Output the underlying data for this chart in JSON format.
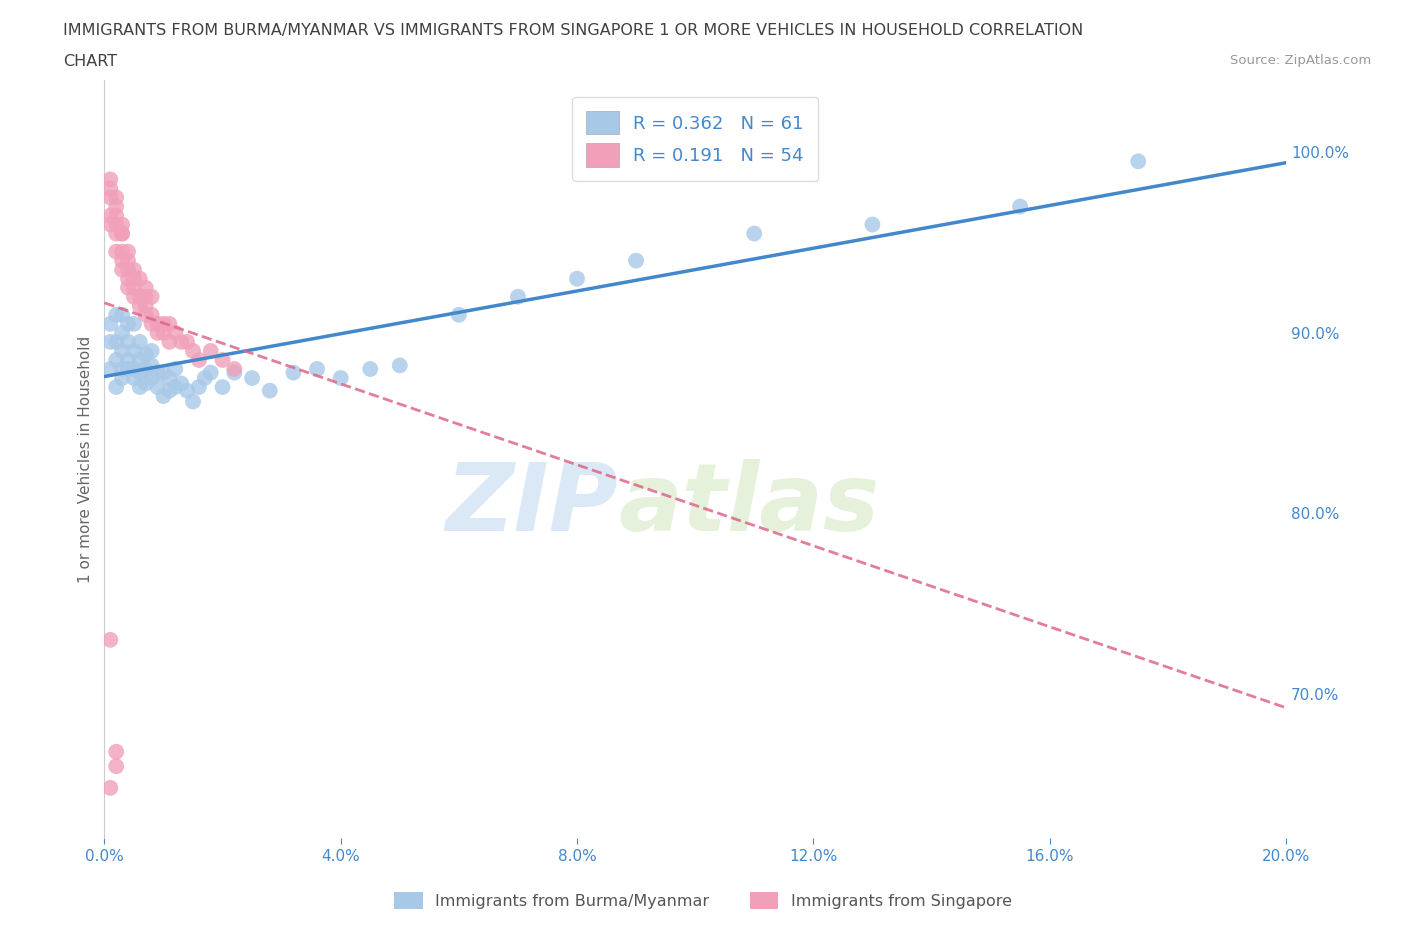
{
  "title_line1": "IMMIGRANTS FROM BURMA/MYANMAR VS IMMIGRANTS FROM SINGAPORE 1 OR MORE VEHICLES IN HOUSEHOLD CORRELATION",
  "title_line2": "CHART",
  "source": "Source: ZipAtlas.com",
  "ylabel": "1 or more Vehicles in Household",
  "xlim": [
    0.0,
    0.2
  ],
  "ylim": [
    0.62,
    1.04
  ],
  "legend_labels": [
    "Immigrants from Burma/Myanmar",
    "Immigrants from Singapore"
  ],
  "scatter_burma": {
    "x": [
      0.001,
      0.001,
      0.001,
      0.002,
      0.002,
      0.002,
      0.002,
      0.003,
      0.003,
      0.003,
      0.003,
      0.003,
      0.004,
      0.004,
      0.004,
      0.004,
      0.005,
      0.005,
      0.005,
      0.005,
      0.006,
      0.006,
      0.006,
      0.006,
      0.007,
      0.007,
      0.007,
      0.008,
      0.008,
      0.008,
      0.009,
      0.009,
      0.01,
      0.01,
      0.011,
      0.011,
      0.012,
      0.012,
      0.013,
      0.014,
      0.015,
      0.016,
      0.017,
      0.018,
      0.02,
      0.022,
      0.025,
      0.028,
      0.032,
      0.036,
      0.04,
      0.045,
      0.05,
      0.06,
      0.07,
      0.08,
      0.09,
      0.11,
      0.13,
      0.155,
      0.175
    ],
    "y": [
      0.88,
      0.895,
      0.905,
      0.87,
      0.885,
      0.895,
      0.91,
      0.875,
      0.88,
      0.89,
      0.9,
      0.91,
      0.88,
      0.885,
      0.895,
      0.905,
      0.875,
      0.88,
      0.89,
      0.905,
      0.87,
      0.878,
      0.885,
      0.895,
      0.872,
      0.88,
      0.888,
      0.875,
      0.882,
      0.89,
      0.87,
      0.878,
      0.865,
      0.878,
      0.868,
      0.875,
      0.87,
      0.88,
      0.872,
      0.868,
      0.862,
      0.87,
      0.875,
      0.878,
      0.87,
      0.878,
      0.875,
      0.868,
      0.878,
      0.88,
      0.875,
      0.88,
      0.882,
      0.91,
      0.92,
      0.93,
      0.94,
      0.955,
      0.96,
      0.97,
      0.995
    ],
    "color": "#a8c8e8",
    "R": 0.362,
    "N": 61
  },
  "scatter_singapore": {
    "x": [
      0.001,
      0.001,
      0.001,
      0.001,
      0.001,
      0.002,
      0.002,
      0.002,
      0.002,
      0.002,
      0.002,
      0.003,
      0.003,
      0.003,
      0.003,
      0.003,
      0.003,
      0.004,
      0.004,
      0.004,
      0.004,
      0.004,
      0.005,
      0.005,
      0.005,
      0.005,
      0.006,
      0.006,
      0.006,
      0.007,
      0.007,
      0.007,
      0.007,
      0.008,
      0.008,
      0.008,
      0.009,
      0.009,
      0.01,
      0.01,
      0.011,
      0.011,
      0.012,
      0.013,
      0.014,
      0.015,
      0.016,
      0.018,
      0.02,
      0.022,
      0.001,
      0.001,
      0.002,
      0.002
    ],
    "y": [
      0.965,
      0.975,
      0.985,
      0.98,
      0.96,
      0.96,
      0.965,
      0.97,
      0.975,
      0.955,
      0.945,
      0.96,
      0.955,
      0.945,
      0.94,
      0.935,
      0.955,
      0.94,
      0.945,
      0.935,
      0.93,
      0.925,
      0.93,
      0.935,
      0.92,
      0.925,
      0.92,
      0.915,
      0.93,
      0.915,
      0.92,
      0.91,
      0.925,
      0.91,
      0.905,
      0.92,
      0.905,
      0.9,
      0.905,
      0.9,
      0.895,
      0.905,
      0.9,
      0.895,
      0.895,
      0.89,
      0.885,
      0.89,
      0.885,
      0.88,
      0.73,
      0.648,
      0.66,
      0.668
    ],
    "color": "#f0a0b8",
    "R": 0.191,
    "N": 54
  },
  "background_color": "#ffffff",
  "grid_color": "#e8e8e8",
  "trend_color_burma": "#4488cc",
  "trend_color_singapore": "#dd6688",
  "title_color": "#404040",
  "axis_label_color": "#666666",
  "tick_color": "#4488cc",
  "right_ytick_values": [
    0.7,
    0.8,
    0.9,
    1.0
  ],
  "right_ytick_labels": [
    "70.0%",
    "80.0%",
    "90.0%",
    "100.0%"
  ],
  "xtick_values": [
    0.0,
    0.04,
    0.08,
    0.12,
    0.16,
    0.2
  ],
  "xtick_labels": [
    "0.0%",
    "4.0%",
    "8.0%",
    "12.0%",
    "16.0%",
    "20.0%"
  ],
  "watermark_part1": "ZIP",
  "watermark_part2": "atlas"
}
